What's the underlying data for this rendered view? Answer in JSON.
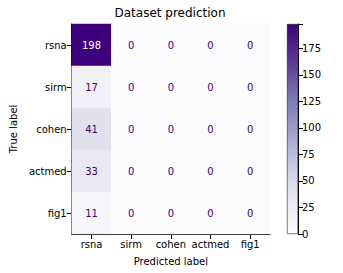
{
  "chart_data": {
    "type": "heatmap",
    "title": "Dataset prediction",
    "x_label": "Predicted label",
    "y_label": "True label",
    "x_categories": [
      "rsna",
      "sirm",
      "cohen",
      "actmed",
      "fig1"
    ],
    "y_categories": [
      "rsna",
      "sirm",
      "cohen",
      "actmed",
      "fig1"
    ],
    "cells": [
      [
        198,
        0,
        0,
        0,
        0
      ],
      [
        17,
        0,
        0,
        0,
        0
      ],
      [
        41,
        0,
        0,
        0,
        0
      ],
      [
        33,
        0,
        0,
        0,
        0
      ],
      [
        11,
        0,
        0,
        0,
        0
      ]
    ],
    "colorbar_range": [
      0,
      198
    ],
    "colorbar_ticks": [
      0,
      25,
      50,
      75,
      100,
      125,
      150,
      175
    ],
    "data_labels": true
  }
}
